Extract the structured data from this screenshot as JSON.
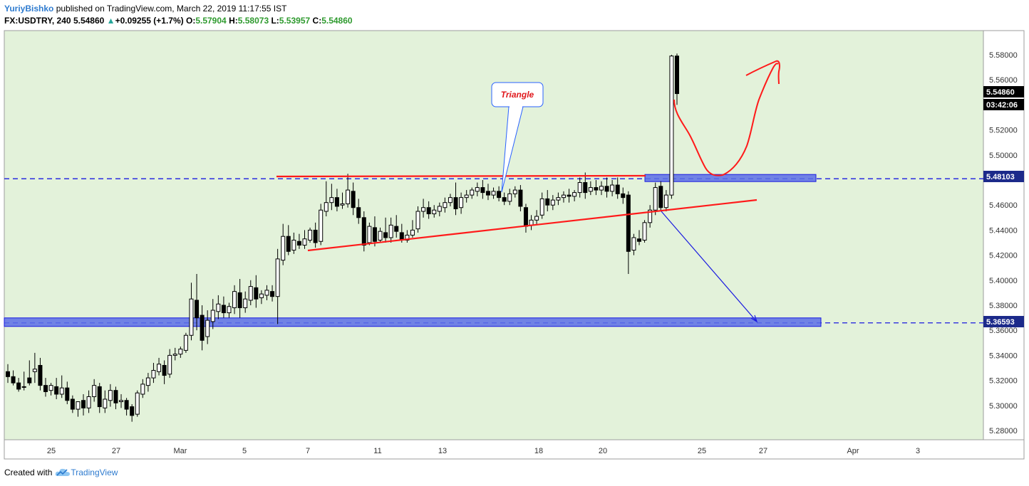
{
  "header": {
    "author": "YuriyBishko",
    "published_text": "published on TradingView.com, March 22, 2019 11:17:55 IST",
    "symbol": "FX:USDTRY, 240",
    "last": "5.54860",
    "change": "+0.09255 (+1.7%)",
    "open_label": "O:",
    "open": "5.57904",
    "high_label": "H:",
    "high": "5.58073",
    "low_label": "L:",
    "low": "5.53957",
    "close_label": "C:",
    "close": "5.54860"
  },
  "footer": {
    "created_with": "Created with",
    "brand": "TradingView"
  },
  "colors": {
    "background": "#e3f2da",
    "red_line": "#ff1a1a",
    "blue_line": "#1a1ae0",
    "zone_fill": "#5c6ee6",
    "label_bg": "#1c2a8a"
  },
  "chart_data": {
    "type": "candlestick",
    "title": "FX:USDTRY, 240",
    "ylim": [
      5.27,
      5.595
    ],
    "y_ticks": [
      "5.58000",
      "5.56000",
      "5.54000",
      "5.52000",
      "5.50000",
      "5.46000",
      "5.44000",
      "5.42000",
      "5.40000",
      "5.38000",
      "5.36000",
      "5.34000",
      "5.32000",
      "5.30000",
      "5.28000"
    ],
    "x_ticks": [
      "25",
      "27",
      "Mar",
      "5",
      "7",
      "11",
      "13",
      "18",
      "20",
      "25",
      "27",
      "Apr",
      "3"
    ],
    "price_labels": {
      "last_price": "5.54860",
      "countdown": "03:42:06",
      "resistance": "5.48103",
      "support": "5.36593"
    },
    "levels": {
      "resistance": 5.48103,
      "support": 5.36593
    },
    "annotations": {
      "triangle_label": "Triangle"
    },
    "candles": [
      [
        5.327,
        5.333,
        5.323,
        5.318
      ],
      [
        5.323,
        5.328,
        5.318,
        5.316
      ],
      [
        5.318,
        5.322,
        5.313,
        5.311
      ],
      [
        5.315,
        5.327,
        5.315,
        5.312
      ],
      [
        5.322,
        5.336,
        5.318,
        5.316
      ],
      [
        5.327,
        5.342,
        5.329,
        5.318
      ],
      [
        5.332,
        5.338,
        5.316,
        5.312
      ],
      [
        5.316,
        5.322,
        5.311,
        5.307
      ],
      [
        5.312,
        5.318,
        5.316,
        5.308
      ],
      [
        5.315,
        5.322,
        5.309,
        5.305
      ],
      [
        5.309,
        5.324,
        5.314,
        5.306
      ],
      [
        5.314,
        5.319,
        5.304,
        5.301
      ],
      [
        5.305,
        5.308,
        5.297,
        5.294
      ],
      [
        5.297,
        5.303,
        5.303,
        5.291
      ],
      [
        5.304,
        5.309,
        5.298,
        5.292
      ],
      [
        5.298,
        5.312,
        5.307,
        5.294
      ],
      [
        5.307,
        5.321,
        5.316,
        5.303
      ],
      [
        5.315,
        5.318,
        5.299,
        5.294
      ],
      [
        5.298,
        5.312,
        5.305,
        5.294
      ],
      [
        5.304,
        5.317,
        5.312,
        5.299
      ],
      [
        5.312,
        5.315,
        5.302,
        5.297
      ],
      [
        5.303,
        5.309,
        5.304,
        5.298
      ],
      [
        5.304,
        5.306,
        5.297,
        5.292
      ],
      [
        5.299,
        5.301,
        5.292,
        5.287
      ],
      [
        5.293,
        5.312,
        5.31,
        5.291
      ],
      [
        5.309,
        5.321,
        5.317,
        5.306
      ],
      [
        5.316,
        5.326,
        5.322,
        5.311
      ],
      [
        5.322,
        5.334,
        5.328,
        5.318
      ],
      [
        5.327,
        5.338,
        5.333,
        5.324
      ],
      [
        5.332,
        5.336,
        5.324,
        5.317
      ],
      [
        5.325,
        5.345,
        5.34,
        5.322
      ],
      [
        5.34,
        5.346,
        5.341,
        5.336
      ],
      [
        5.341,
        5.347,
        5.345,
        5.338
      ],
      [
        5.344,
        5.358,
        5.356,
        5.342
      ],
      [
        5.356,
        5.398,
        5.385,
        5.352
      ],
      [
        5.384,
        5.405,
        5.37,
        5.36
      ],
      [
        5.372,
        5.38,
        5.352,
        5.344
      ],
      [
        5.355,
        5.376,
        5.368,
        5.349
      ],
      [
        5.367,
        5.385,
        5.376,
        5.361
      ],
      [
        5.375,
        5.388,
        5.381,
        5.369
      ],
      [
        5.38,
        5.387,
        5.374,
        5.37
      ],
      [
        5.374,
        5.382,
        5.379,
        5.37
      ],
      [
        5.378,
        5.396,
        5.391,
        5.373
      ],
      [
        5.39,
        5.401,
        5.378,
        5.37
      ],
      [
        5.378,
        5.391,
        5.385,
        5.374
      ],
      [
        5.384,
        5.4,
        5.395,
        5.38
      ],
      [
        5.394,
        5.404,
        5.385,
        5.378
      ],
      [
        5.386,
        5.392,
        5.389,
        5.381
      ],
      [
        5.388,
        5.396,
        5.392,
        5.384
      ],
      [
        5.391,
        5.396,
        5.387,
        5.383
      ],
      [
        5.387,
        5.425,
        5.417,
        5.365
      ],
      [
        5.416,
        5.445,
        5.435,
        5.412
      ],
      [
        5.435,
        5.444,
        5.423,
        5.42
      ],
      [
        5.424,
        5.438,
        5.432,
        5.421
      ],
      [
        5.431,
        5.437,
        5.428,
        5.425
      ],
      [
        5.428,
        5.44,
        5.433,
        5.425
      ],
      [
        5.432,
        5.442,
        5.44,
        5.43
      ],
      [
        5.44,
        5.446,
        5.43,
        5.426
      ],
      [
        5.431,
        5.461,
        5.456,
        5.428
      ],
      [
        5.455,
        5.479,
        5.462,
        5.451
      ],
      [
        5.462,
        5.477,
        5.466,
        5.456
      ],
      [
        5.466,
        5.473,
        5.459,
        5.455
      ],
      [
        5.46,
        5.47,
        5.461,
        5.457
      ],
      [
        5.461,
        5.485,
        5.472,
        5.458
      ],
      [
        5.471,
        5.478,
        5.458,
        5.452
      ],
      [
        5.458,
        5.465,
        5.45,
        5.445
      ],
      [
        5.45,
        5.455,
        5.428,
        5.423
      ],
      [
        5.43,
        5.446,
        5.443,
        5.428
      ],
      [
        5.442,
        5.451,
        5.431,
        5.427
      ],
      [
        5.432,
        5.442,
        5.439,
        5.43
      ],
      [
        5.438,
        5.45,
        5.434,
        5.43
      ],
      [
        5.434,
        5.45,
        5.444,
        5.43
      ],
      [
        5.443,
        5.452,
        5.439,
        5.434
      ],
      [
        5.438,
        5.445,
        5.432,
        5.43
      ],
      [
        5.432,
        5.44,
        5.436,
        5.43
      ],
      [
        5.436,
        5.448,
        5.44,
        5.434
      ],
      [
        5.441,
        5.459,
        5.455,
        5.438
      ],
      [
        5.455,
        5.465,
        5.458,
        5.45
      ],
      [
        5.458,
        5.463,
        5.453,
        5.449
      ],
      [
        5.453,
        5.46,
        5.456,
        5.45
      ],
      [
        5.455,
        5.462,
        5.459,
        5.451
      ],
      [
        5.458,
        5.466,
        5.462,
        5.454
      ],
      [
        5.462,
        5.469,
        5.466,
        5.459
      ],
      [
        5.466,
        5.478,
        5.457,
        5.452
      ],
      [
        5.458,
        5.47,
        5.466,
        5.453
      ],
      [
        5.466,
        5.472,
        5.468,
        5.462
      ],
      [
        5.468,
        5.474,
        5.472,
        5.465
      ],
      [
        5.471,
        5.478,
        5.474,
        5.467
      ],
      [
        5.474,
        5.48,
        5.47,
        5.465
      ],
      [
        5.471,
        5.477,
        5.468,
        5.464
      ],
      [
        5.468,
        5.474,
        5.471,
        5.465
      ],
      [
        5.471,
        5.475,
        5.466,
        5.463
      ],
      [
        5.466,
        5.47,
        5.463,
        5.46
      ],
      [
        5.463,
        5.473,
        5.469,
        5.46
      ],
      [
        5.469,
        5.475,
        5.472,
        5.466
      ],
      [
        5.472,
        5.476,
        5.459,
        5.455
      ],
      [
        5.458,
        5.461,
        5.443,
        5.438
      ],
      [
        5.444,
        5.452,
        5.448,
        5.44
      ],
      [
        5.448,
        5.456,
        5.451,
        5.444
      ],
      [
        5.452,
        5.47,
        5.465,
        5.449
      ],
      [
        5.465,
        5.472,
        5.46,
        5.455
      ],
      [
        5.46,
        5.468,
        5.464,
        5.456
      ],
      [
        5.464,
        5.47,
        5.466,
        5.46
      ],
      [
        5.466,
        5.471,
        5.468,
        5.462
      ],
      [
        5.468,
        5.473,
        5.467,
        5.462
      ],
      [
        5.467,
        5.472,
        5.47,
        5.463
      ],
      [
        5.47,
        5.482,
        5.478,
        5.466
      ],
      [
        5.478,
        5.486,
        5.47,
        5.465
      ],
      [
        5.471,
        5.479,
        5.474,
        5.468
      ],
      [
        5.474,
        5.48,
        5.472,
        5.468
      ],
      [
        5.472,
        5.479,
        5.475,
        5.468
      ],
      [
        5.475,
        5.482,
        5.471,
        5.466
      ],
      [
        5.471,
        5.48,
        5.476,
        5.467
      ],
      [
        5.476,
        5.482,
        5.469,
        5.465
      ],
      [
        5.469,
        5.474,
        5.466,
        5.461
      ],
      [
        5.468,
        5.471,
        5.423,
        5.405
      ],
      [
        5.424,
        5.437,
        5.434,
        5.42
      ],
      [
        5.433,
        5.44,
        5.431,
        5.428
      ],
      [
        5.432,
        5.448,
        5.446,
        5.43
      ],
      [
        5.446,
        5.46,
        5.456,
        5.442
      ],
      [
        5.456,
        5.478,
        5.474,
        5.452
      ],
      [
        5.475,
        5.479,
        5.458,
        5.455
      ],
      [
        5.458,
        5.472,
        5.468,
        5.455
      ],
      [
        5.468,
        5.58,
        5.579,
        5.465
      ],
      [
        5.579,
        5.581,
        5.549,
        5.54
      ]
    ]
  }
}
